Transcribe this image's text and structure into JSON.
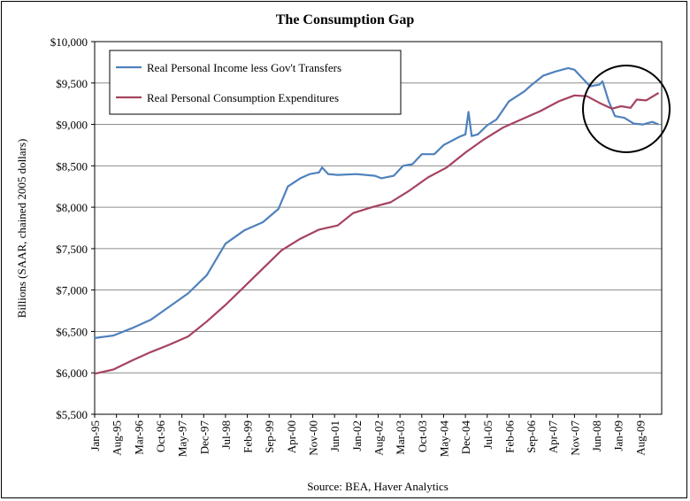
{
  "chart_data": {
    "type": "line",
    "title": "The Consumption Gap",
    "ylabel": "Billions (SAAR, chained 2005 dollars)",
    "xlabel": "",
    "source": "Source:  BEA, Haver Analytics",
    "ylim": [
      5500,
      10000
    ],
    "yticks": [
      5500,
      6000,
      6500,
      7000,
      7500,
      8000,
      8500,
      9000,
      9500,
      10000
    ],
    "ytick_labels": [
      "$5,500",
      "$6,000",
      "$6,500",
      "$7,000",
      "$7,500",
      "$8,000",
      "$8,500",
      "$9,000",
      "$9,500",
      "$10,000"
    ],
    "xticks": [
      {
        "label": "Jan-95",
        "date": "1995-01"
      },
      {
        "label": "Aug-95",
        "date": "1995-08"
      },
      {
        "label": "Mar-96",
        "date": "1996-03"
      },
      {
        "label": "Oct-96",
        "date": "1996-10"
      },
      {
        "label": "May-97",
        "date": "1997-05"
      },
      {
        "label": "Dec-97",
        "date": "1997-12"
      },
      {
        "label": "Jul-98",
        "date": "1998-07"
      },
      {
        "label": "Feb-99",
        "date": "1999-02"
      },
      {
        "label": "Sep-99",
        "date": "1999-09"
      },
      {
        "label": "Apr-00",
        "date": "2000-04"
      },
      {
        "label": "Nov-00",
        "date": "2000-11"
      },
      {
        "label": "Jun-01",
        "date": "2001-06"
      },
      {
        "label": "Jan-02",
        "date": "2002-01"
      },
      {
        "label": "Aug-02",
        "date": "2002-08"
      },
      {
        "label": "Mar-03",
        "date": "2003-03"
      },
      {
        "label": "Oct-03",
        "date": "2003-10"
      },
      {
        "label": "May-04",
        "date": "2004-05"
      },
      {
        "label": "Dec-04",
        "date": "2004-12"
      },
      {
        "label": "Jul-05",
        "date": "2005-07"
      },
      {
        "label": "Feb-06",
        "date": "2006-02"
      },
      {
        "label": "Sep-06",
        "date": "2006-09"
      },
      {
        "label": "Apr-07",
        "date": "2007-04"
      },
      {
        "label": "Nov-07",
        "date": "2007-11"
      },
      {
        "label": "Jun-08",
        "date": "2008-06"
      },
      {
        "label": "Jan-09",
        "date": "2009-01"
      },
      {
        "label": "Aug-09",
        "date": "2009-08"
      }
    ],
    "grid": true,
    "legend_position": "top-left",
    "annotation": "circle around 2008-2009 crossover",
    "series": [
      {
        "name": "Real Personal Income less Gov't Transfers",
        "color": "#4f81bd",
        "points": [
          [
            "1995-01",
            6420
          ],
          [
            "1995-07",
            6450
          ],
          [
            "1996-01",
            6540
          ],
          [
            "1996-07",
            6640
          ],
          [
            "1997-01",
            6800
          ],
          [
            "1997-07",
            6960
          ],
          [
            "1998-01",
            7180
          ],
          [
            "1998-07",
            7560
          ],
          [
            "1999-01",
            7720
          ],
          [
            "1999-07",
            7820
          ],
          [
            "1999-12",
            7980
          ],
          [
            "2000-03",
            8250
          ],
          [
            "2000-07",
            8350
          ],
          [
            "2000-10",
            8400
          ],
          [
            "2001-01",
            8420
          ],
          [
            "2001-02",
            8480
          ],
          [
            "2001-04",
            8400
          ],
          [
            "2001-07",
            8390
          ],
          [
            "2002-01",
            8400
          ],
          [
            "2002-07",
            8380
          ],
          [
            "2002-09",
            8350
          ],
          [
            "2003-01",
            8380
          ],
          [
            "2003-04",
            8500
          ],
          [
            "2003-07",
            8520
          ],
          [
            "2003-10",
            8640
          ],
          [
            "2004-02",
            8640
          ],
          [
            "2004-05",
            8750
          ],
          [
            "2004-10",
            8850
          ],
          [
            "2004-12",
            8880
          ],
          [
            "2005-01",
            9150
          ],
          [
            "2005-02",
            8860
          ],
          [
            "2005-04",
            8880
          ],
          [
            "2005-07",
            8990
          ],
          [
            "2005-10",
            9060
          ],
          [
            "2006-02",
            9280
          ],
          [
            "2006-07",
            9400
          ],
          [
            "2006-09",
            9470
          ],
          [
            "2007-01",
            9590
          ],
          [
            "2007-05",
            9640
          ],
          [
            "2007-09",
            9680
          ],
          [
            "2007-11",
            9660
          ],
          [
            "2008-01",
            9580
          ],
          [
            "2008-04",
            9460
          ],
          [
            "2008-07",
            9480
          ],
          [
            "2008-08",
            9520
          ],
          [
            "2008-10",
            9280
          ],
          [
            "2008-12",
            9100
          ],
          [
            "2009-03",
            9080
          ],
          [
            "2009-06",
            9010
          ],
          [
            "2009-09",
            9000
          ],
          [
            "2009-12",
            9030
          ],
          [
            "2010-02",
            9000
          ]
        ]
      },
      {
        "name": "Real Personal Consumption Expenditures",
        "color": "#a5435f",
        "points": [
          [
            "1995-01",
            5990
          ],
          [
            "1995-07",
            6040
          ],
          [
            "1996-01",
            6150
          ],
          [
            "1996-07",
            6250
          ],
          [
            "1997-01",
            6340
          ],
          [
            "1997-07",
            6440
          ],
          [
            "1998-01",
            6620
          ],
          [
            "1998-07",
            6820
          ],
          [
            "1999-01",
            7040
          ],
          [
            "1999-07",
            7260
          ],
          [
            "2000-01",
            7480
          ],
          [
            "2000-07",
            7620
          ],
          [
            "2001-01",
            7730
          ],
          [
            "2001-07",
            7780
          ],
          [
            "2001-12",
            7930
          ],
          [
            "2002-06",
            8000
          ],
          [
            "2002-12",
            8060
          ],
          [
            "2003-06",
            8200
          ],
          [
            "2003-12",
            8360
          ],
          [
            "2004-06",
            8480
          ],
          [
            "2004-12",
            8660
          ],
          [
            "2005-06",
            8820
          ],
          [
            "2005-12",
            8960
          ],
          [
            "2006-06",
            9060
          ],
          [
            "2006-12",
            9160
          ],
          [
            "2007-06",
            9280
          ],
          [
            "2007-11",
            9350
          ],
          [
            "2008-03",
            9340
          ],
          [
            "2008-07",
            9260
          ],
          [
            "2008-11",
            9190
          ],
          [
            "2009-02",
            9220
          ],
          [
            "2009-05",
            9200
          ],
          [
            "2009-07",
            9300
          ],
          [
            "2009-10",
            9290
          ],
          [
            "2010-02",
            9380
          ]
        ]
      }
    ]
  }
}
